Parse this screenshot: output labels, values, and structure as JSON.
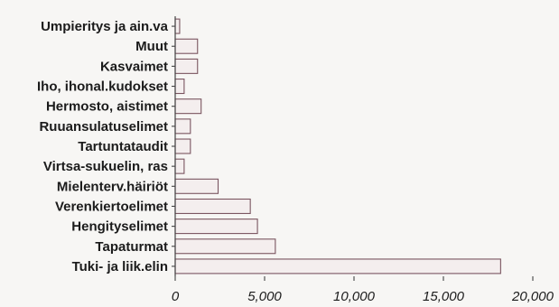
{
  "chart_data": {
    "type": "bar",
    "orientation": "horizontal",
    "categories": [
      "Umpieritys ja ain.va",
      "Muut",
      "Kasvaimet",
      "Iho, ihonal.kudokset",
      "Hermosto, aistimet",
      "Ruuansulatuselimet",
      "Tartuntataudit",
      "Virtsa-sukuelin, ras",
      "Mielenterv.häiriöt",
      "Verenkiertoelimet",
      "Hengityselimet",
      "Tapaturmat",
      "Tuki- ja liik.elin"
    ],
    "values": [
      250,
      1250,
      1250,
      500,
      1450,
      850,
      850,
      500,
      2400,
      4200,
      4600,
      5600,
      18200
    ],
    "xlim": [
      0,
      20000
    ],
    "ticks": [
      0,
      5000,
      10000,
      15000,
      20000
    ],
    "tick_labels": [
      "0",
      "5,000",
      "10,000",
      "15,000",
      "20,000"
    ],
    "title": "",
    "xlabel": "",
    "ylabel": "",
    "grid": false,
    "colors": {
      "bar_fill": "#f4eeee",
      "bar_stroke": "#7a5560",
      "axis": "#444444",
      "text": "#1b1b1b"
    }
  }
}
